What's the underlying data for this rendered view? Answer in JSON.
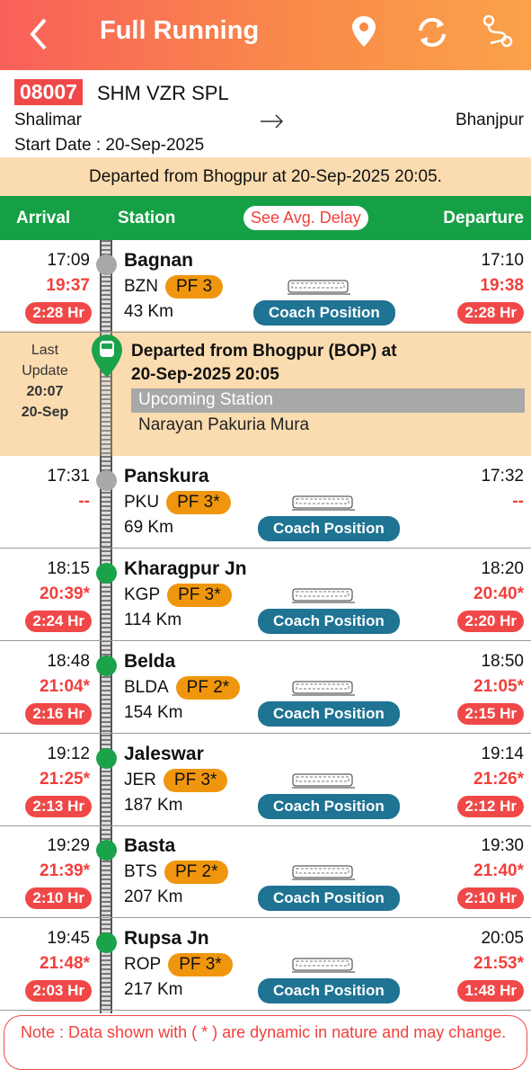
{
  "header": {
    "title": "Full Running"
  },
  "train": {
    "number": "08007",
    "name": "SHM VZR SPL",
    "from": "Shalimar",
    "to": "Bhanjpur",
    "start_date": "Start Date : 20-Sep-2025"
  },
  "banner": "Departed from Bhogpur at 20-Sep-2025 20:05.",
  "columns": {
    "arrival": "Arrival",
    "station": "Station",
    "delay_button": "See Avg. Delay",
    "departure": "Departure"
  },
  "current": {
    "last_update_label": "Last Update",
    "time": "20:07",
    "date": "20-Sep",
    "message": "Departed from Bhogpur (BOP) at 20-Sep-2025 20:05",
    "upcoming_label": "Upcoming Station",
    "upcoming": "Narayan Pakuria Mura"
  },
  "stations": [
    {
      "sched_arr": "17:09",
      "actual_arr": "19:37",
      "arr_delay": "2:28 Hr",
      "name": "Bagnan",
      "code": "BZN",
      "pf": "PF 3",
      "km": "43 Km",
      "coach": "Coach Position",
      "sched_dep": "17:10",
      "actual_dep": "19:38",
      "dep_delay": "2:28 Hr",
      "dot_color": "#a8a8a8"
    },
    {
      "sched_arr": "17:31",
      "actual_arr": "--",
      "name": "Panskura",
      "code": "PKU",
      "pf": "PF 3*",
      "km": "69 Km",
      "coach": "Coach Position",
      "sched_dep": "17:32",
      "actual_dep": "--",
      "dot_color": "#a8a8a8"
    },
    {
      "sched_arr": "18:15",
      "actual_arr": "20:39*",
      "arr_delay": "2:24 Hr",
      "name": "Kharagpur Jn",
      "code": "KGP",
      "pf": "PF 3*",
      "km": "114 Km",
      "coach": "Coach Position",
      "sched_dep": "18:20",
      "actual_dep": "20:40*",
      "dep_delay": "2:20 Hr",
      "dot_color": "#1aa34a"
    },
    {
      "sched_arr": "18:48",
      "actual_arr": "21:04*",
      "arr_delay": "2:16 Hr",
      "name": "Belda",
      "code": "BLDA",
      "pf": "PF 2*",
      "km": "154 Km",
      "coach": "Coach Position",
      "sched_dep": "18:50",
      "actual_dep": "21:05*",
      "dep_delay": "2:15 Hr",
      "dot_color": "#1aa34a"
    },
    {
      "sched_arr": "19:12",
      "actual_arr": "21:25*",
      "arr_delay": "2:13 Hr",
      "name": "Jaleswar",
      "code": "JER",
      "pf": "PF 3*",
      "km": "187 Km",
      "coach": "Coach Position",
      "sched_dep": "19:14",
      "actual_dep": "21:26*",
      "dep_delay": "2:12 Hr",
      "dot_color": "#1aa34a"
    },
    {
      "sched_arr": "19:29",
      "actual_arr": "21:39*",
      "arr_delay": "2:10 Hr",
      "name": "Basta",
      "code": "BTS",
      "pf": "PF 2*",
      "km": "207 Km",
      "coach": "Coach Position",
      "sched_dep": "19:30",
      "actual_dep": "21:40*",
      "dep_delay": "2:10 Hr",
      "dot_color": "#1aa34a"
    },
    {
      "sched_arr": "19:45",
      "actual_arr": "21:48*",
      "arr_delay": "2:03 Hr",
      "name": "Rupsa Jn",
      "code": "ROP",
      "pf": "PF 3*",
      "km": "217 Km",
      "coach": "Coach Position",
      "sched_dep": "20:05",
      "actual_dep": "21:53*",
      "dep_delay": "1:48 Hr",
      "dot_color": "#1aa34a"
    }
  ],
  "note": "Note : Data shown with ( * ) are dynamic in nature and may change."
}
